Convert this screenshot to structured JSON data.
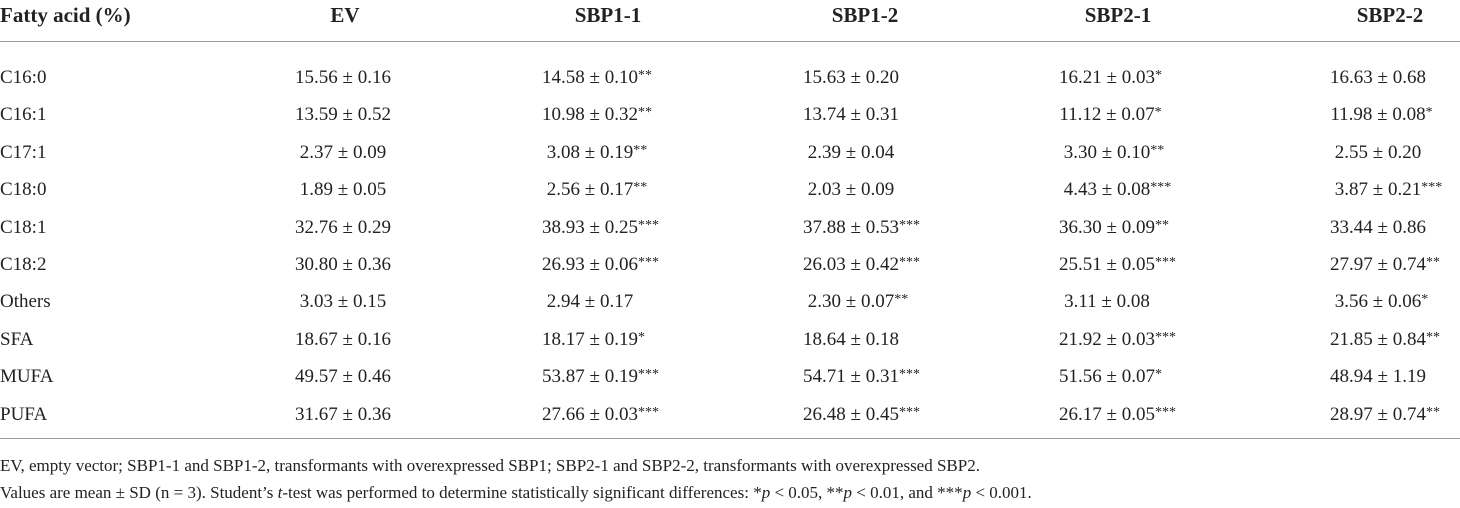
{
  "table": {
    "header": [
      "Fatty acid (%)",
      "EV",
      "SBP1-1",
      "SBP1-2",
      "SBP2-1",
      "SBP2-2"
    ],
    "rows": [
      [
        {
          "text": "C16:0"
        },
        {
          "text": "15.56 ± 0.16"
        },
        {
          "text": "14.58 ± 0.10",
          "sig": "**"
        },
        {
          "text": "15.63 ± 0.20"
        },
        {
          "text": "16.21 ± 0.03",
          "sig": "*"
        },
        {
          "text": "16.63 ± 0.68"
        }
      ],
      [
        {
          "text": "C16:1"
        },
        {
          "text": "13.59 ± 0.52"
        },
        {
          "text": "10.98 ± 0.32",
          "sig": "**"
        },
        {
          "text": "13.74 ± 0.31"
        },
        {
          "text": "11.12 ± 0.07",
          "sig": "*"
        },
        {
          "text": "11.98 ± 0.08",
          "sig": "*"
        }
      ],
      [
        {
          "text": "C17:1"
        },
        {
          "text": "2.37 ± 0.09"
        },
        {
          "text": "3.08 ± 0.19",
          "sig": "**"
        },
        {
          "text": "2.39 ± 0.04"
        },
        {
          "text": "3.30 ± 0.10",
          "sig": "**"
        },
        {
          "text": "2.55 ± 0.20"
        }
      ],
      [
        {
          "text": "C18:0"
        },
        {
          "text": "1.89 ± 0.05"
        },
        {
          "text": "2.56 ± 0.17",
          "sig": "**"
        },
        {
          "text": "2.03 ± 0.09"
        },
        {
          "text": "4.43 ± 0.08",
          "sig": "***"
        },
        {
          "text": "3.87 ± 0.21",
          "sig": "***"
        }
      ],
      [
        {
          "text": "C18:1"
        },
        {
          "text": "32.76 ± 0.29"
        },
        {
          "text": "38.93 ± 0.25",
          "sig": "***"
        },
        {
          "text": "37.88 ± 0.53",
          "sig": "***"
        },
        {
          "text": "36.30 ± 0.09",
          "sig": "**"
        },
        {
          "text": "33.44 ± 0.86"
        }
      ],
      [
        {
          "text": "C18:2"
        },
        {
          "text": "30.80 ± 0.36"
        },
        {
          "text": "26.93 ± 0.06",
          "sig": "***"
        },
        {
          "text": "26.03 ± 0.42",
          "sig": "***"
        },
        {
          "text": "25.51 ± 0.05",
          "sig": "***"
        },
        {
          "text": "27.97 ± 0.74",
          "sig": "**"
        }
      ],
      [
        {
          "text": "Others"
        },
        {
          "text": "3.03 ± 0.15"
        },
        {
          "text": "2.94 ± 0.17"
        },
        {
          "text": "2.30 ± 0.07",
          "sig": "**"
        },
        {
          "text": "3.11 ± 0.08"
        },
        {
          "text": "3.56 ± 0.06",
          "sig": "*"
        }
      ],
      [
        {
          "text": "SFA"
        },
        {
          "text": "18.67 ± 0.16"
        },
        {
          "text": "18.17 ± 0.19",
          "sig": "*"
        },
        {
          "text": "18.64 ± 0.18"
        },
        {
          "text": "21.92 ± 0.03",
          "sig": "***"
        },
        {
          "text": "21.85 ± 0.84",
          "sig": "**"
        }
      ],
      [
        {
          "text": "MUFA"
        },
        {
          "text": "49.57 ± 0.46"
        },
        {
          "text": "53.87 ± 0.19",
          "sig": "***"
        },
        {
          "text": "54.71 ± 0.31",
          "sig": "***"
        },
        {
          "text": "51.56 ± 0.07",
          "sig": "*"
        },
        {
          "text": "48.94 ± 1.19"
        }
      ],
      [
        {
          "text": "PUFA"
        },
        {
          "text": "31.67 ± 0.36"
        },
        {
          "text": "27.66 ± 0.03",
          "sig": "***"
        },
        {
          "text": "26.48 ± 0.45",
          "sig": "***"
        },
        {
          "text": "26.17 ± 0.05",
          "sig": "***"
        },
        {
          "text": "28.97 ± 0.74",
          "sig": "**"
        }
      ]
    ]
  },
  "footnotes": [
    [
      "EV, empty vector; SBP1-1 and SBP1-2, transformants with overexpressed SBP1; SBP2-1 and SBP2-2, transformants with overexpressed SBP2."
    ],
    [
      "Values are mean ± SD (n = 3). Student’s ",
      "t",
      "-test was performed to determine statistically significant differences: *",
      "p",
      " < 0.05, **",
      "p",
      " < 0.01, and ***",
      "p",
      " < 0.001."
    ]
  ]
}
